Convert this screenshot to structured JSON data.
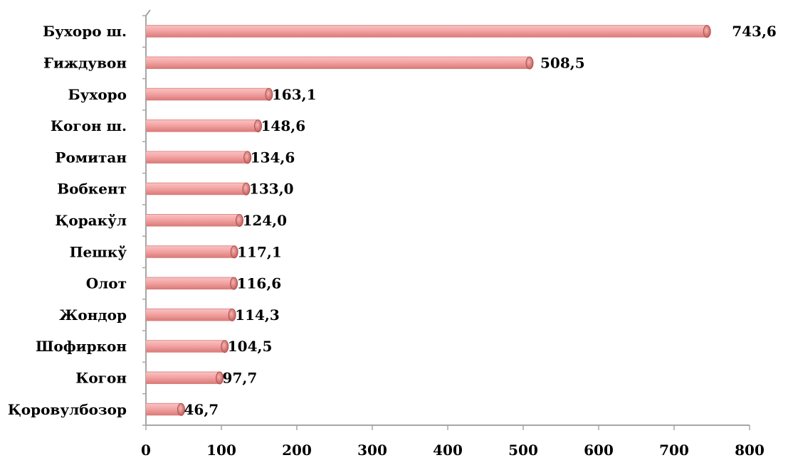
{
  "chart_data": {
    "type": "bar",
    "orientation": "horizontal",
    "categories": [
      "Бухоро ш.",
      "Ғиждувон",
      "Бухоро",
      "Когон ш.",
      "Ромитан",
      "Вобкент",
      "Қоракўл",
      "Пешкў",
      "Олот",
      "Жондор",
      "Шофиркон",
      "Когон",
      "Қоровулбозор"
    ],
    "values": [
      743.6,
      508.5,
      163.1,
      148.6,
      134.6,
      133.0,
      124.0,
      117.1,
      116.6,
      114.3,
      104.5,
      97.7,
      46.7
    ],
    "value_labels": [
      "743,6",
      "508,5",
      "163,1",
      "148,6",
      "134,6",
      "133,0",
      "124,0",
      "117,1",
      "116,6",
      "114,3",
      "104,5",
      "97,7",
      "46,7"
    ],
    "x_ticks": [
      "0",
      "100",
      "200",
      "300",
      "400",
      "500",
      "600",
      "700",
      "800"
    ],
    "xlim": [
      0,
      800
    ],
    "title": "",
    "xlabel": "",
    "ylabel": "",
    "grid": false,
    "legend": "none",
    "bar_color": "#f4a3a3",
    "bar_edge_color": "#c0504d"
  }
}
